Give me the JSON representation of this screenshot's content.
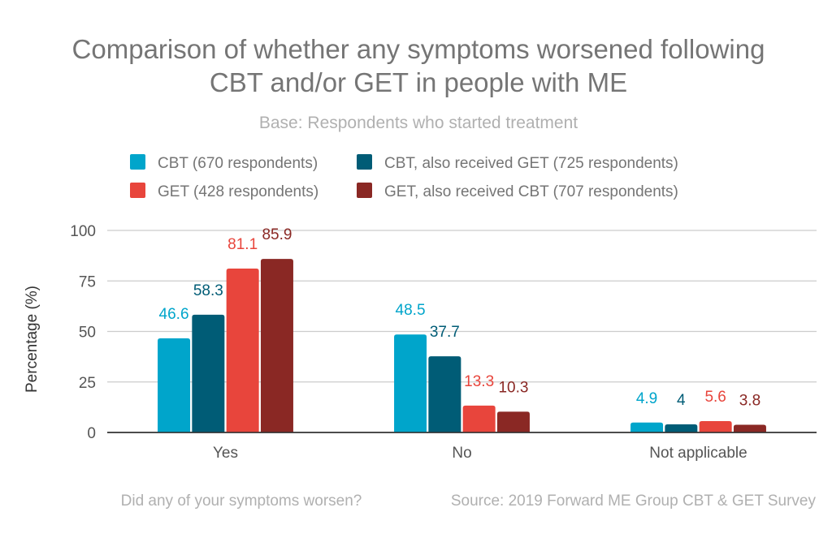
{
  "chart_data": {
    "type": "bar",
    "title_line1": "Comparison of whether any symptoms worsened following",
    "title_line2": "CBT and/or GET in people with ME",
    "subtitle": "Base: Respondents who started treatment",
    "xlabel": "Did any of your symptoms worsen?",
    "ylabel": "Percentage (%)",
    "source": "Source: 2019 Forward ME Group CBT & GET Survey",
    "categories": [
      "Yes",
      "No",
      "Not applicable"
    ],
    "ylim": [
      0,
      100
    ],
    "yticks": [
      "0",
      "25",
      "50",
      "75",
      "100"
    ],
    "grid": true,
    "legend_position": "top",
    "series": [
      {
        "name": "CBT (670 respondents)",
        "color": "#00a5cb",
        "values": [
          46.6,
          48.5,
          4.9
        ],
        "labels": [
          "46.6",
          "48.5",
          "4.9"
        ]
      },
      {
        "name": "CBT, also received GET (725 respondents)",
        "color": "#005c76",
        "values": [
          58.3,
          37.7,
          4
        ],
        "labels": [
          "58.3",
          "37.7",
          "4"
        ]
      },
      {
        "name": "GET (428 respondents)",
        "color": "#e8453c",
        "values": [
          81.1,
          13.3,
          5.6
        ],
        "labels": [
          "81.1",
          "13.3",
          "5.6"
        ]
      },
      {
        "name": "GET, also received CBT (707 respondents)",
        "color": "#8a2824",
        "values": [
          85.9,
          10.3,
          3.8
        ],
        "labels": [
          "85.9",
          "10.3",
          "3.8"
        ]
      }
    ]
  }
}
